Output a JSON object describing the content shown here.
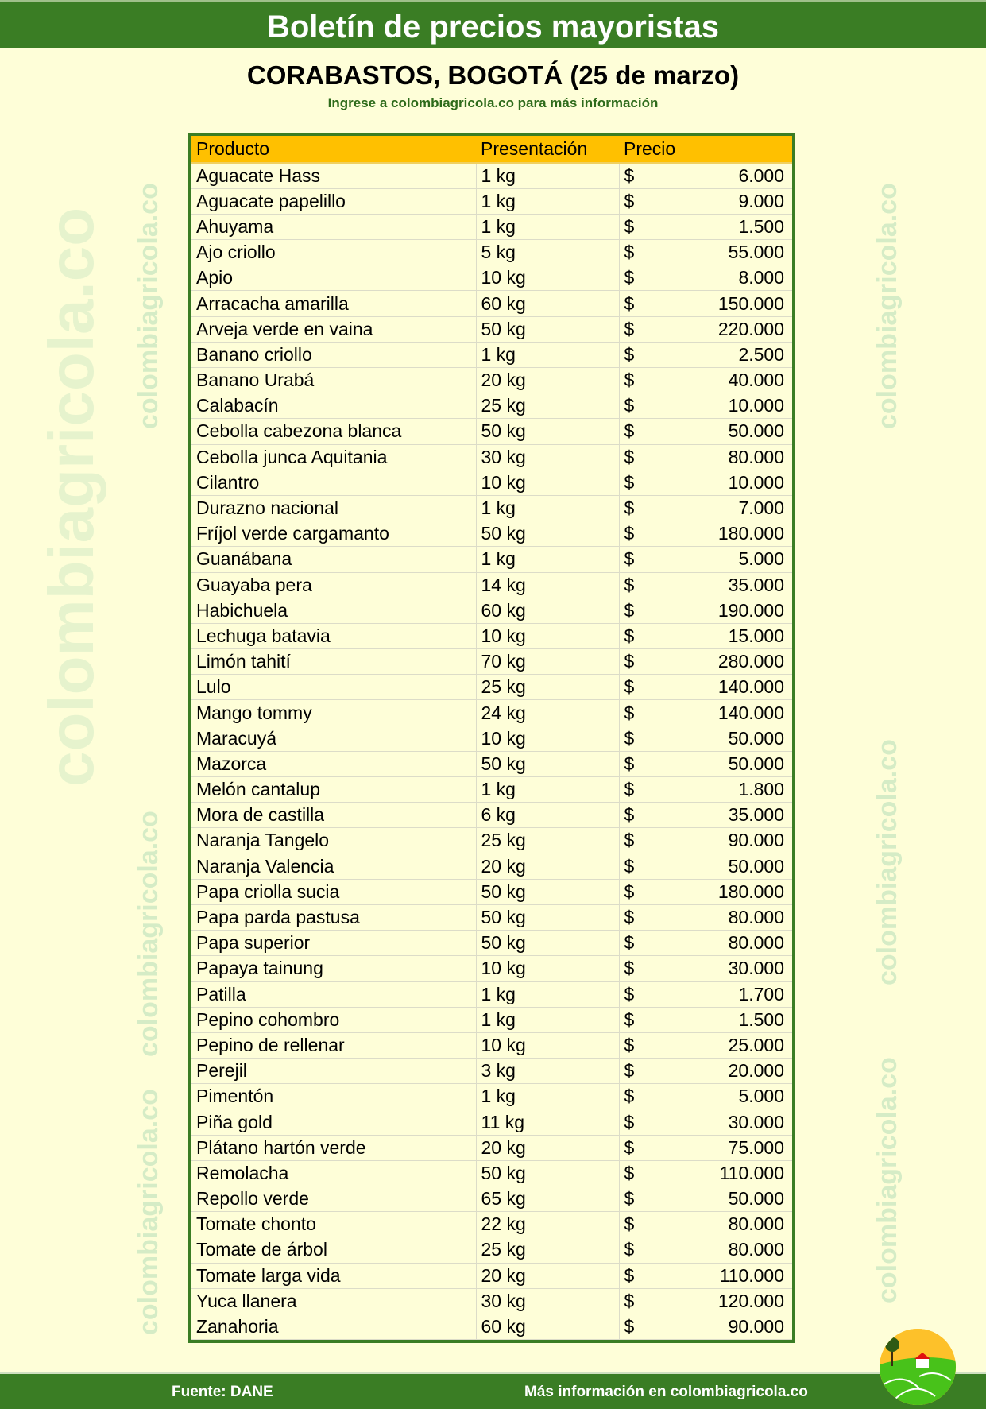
{
  "header": {
    "title": "Boletín de precios mayoristas",
    "subtitle": "CORABASTOS, BOGOTÁ (25 de marzo)",
    "info": "Ingrese a colombiagricola.co para más información"
  },
  "watermark": "colombiagricola.co",
  "table": {
    "columns": [
      "Producto",
      "Presentación",
      "Precio"
    ],
    "currency": "$",
    "rows": [
      [
        "Aguacate Hass",
        "1 kg",
        "6.000"
      ],
      [
        "Aguacate papelillo",
        "1 kg",
        "9.000"
      ],
      [
        "Ahuyama",
        "1 kg",
        "1.500"
      ],
      [
        "Ajo criollo",
        "5 kg",
        "55.000"
      ],
      [
        "Apio",
        "10 kg",
        "8.000"
      ],
      [
        "Arracacha amarilla",
        "60 kg",
        "150.000"
      ],
      [
        "Arveja verde en vaina",
        "50 kg",
        "220.000"
      ],
      [
        "Banano criollo",
        "1 kg",
        "2.500"
      ],
      [
        "Banano Urabá",
        "20 kg",
        "40.000"
      ],
      [
        "Calabacín",
        "25 kg",
        "10.000"
      ],
      [
        "Cebolla cabezona blanca",
        "50 kg",
        "50.000"
      ],
      [
        "Cebolla junca Aquitania",
        "30 kg",
        "80.000"
      ],
      [
        "Cilantro",
        "10 kg",
        "10.000"
      ],
      [
        "Durazno nacional",
        "1 kg",
        "7.000"
      ],
      [
        "Fríjol verde cargamanto",
        "50 kg",
        "180.000"
      ],
      [
        "Guanábana",
        "1 kg",
        "5.000"
      ],
      [
        "Guayaba pera",
        "14 kg",
        "35.000"
      ],
      [
        "Habichuela",
        "60 kg",
        "190.000"
      ],
      [
        "Lechuga batavia",
        "10 kg",
        "15.000"
      ],
      [
        "Limón tahití",
        "70 kg",
        "280.000"
      ],
      [
        "Lulo",
        "25 kg",
        "140.000"
      ],
      [
        "Mango tommy",
        "24 kg",
        "140.000"
      ],
      [
        "Maracuyá",
        "10 kg",
        "50.000"
      ],
      [
        "Mazorca",
        "50 kg",
        "50.000"
      ],
      [
        "Melón cantalup",
        "1 kg",
        "1.800"
      ],
      [
        "Mora de castilla",
        "6 kg",
        "35.000"
      ],
      [
        "Naranja Tangelo",
        "25 kg",
        "90.000"
      ],
      [
        "Naranja Valencia",
        "20 kg",
        "50.000"
      ],
      [
        "Papa criolla sucia",
        "50 kg",
        "180.000"
      ],
      [
        "Papa parda pastusa",
        "50 kg",
        "80.000"
      ],
      [
        "Papa superior",
        "50 kg",
        "80.000"
      ],
      [
        "Papaya tainung",
        "10 kg",
        "30.000"
      ],
      [
        "Patilla",
        "1 kg",
        "1.700"
      ],
      [
        "Pepino cohombro",
        "1 kg",
        "1.500"
      ],
      [
        "Pepino de rellenar",
        "10 kg",
        "25.000"
      ],
      [
        "Perejil",
        "3 kg",
        "20.000"
      ],
      [
        "Pimentón",
        "1 kg",
        "5.000"
      ],
      [
        "Piña gold",
        "11 kg",
        "30.000"
      ],
      [
        "Plátano hartón verde",
        "20 kg",
        "75.000"
      ],
      [
        "Remolacha",
        "50 kg",
        "110.000"
      ],
      [
        "Repollo verde",
        "65 kg",
        "50.000"
      ],
      [
        "Tomate chonto",
        "22 kg",
        "80.000"
      ],
      [
        "Tomate de árbol",
        "25 kg",
        "80.000"
      ],
      [
        "Tomate larga vida",
        "20 kg",
        "110.000"
      ],
      [
        "Yuca llanera",
        "30 kg",
        "120.000"
      ],
      [
        "Zanahoria",
        "60 kg",
        "90.000"
      ]
    ]
  },
  "footer": {
    "source": "Fuente: DANE",
    "more": "Más información en colombiagricola.co"
  },
  "colors": {
    "green": "#3a7d24",
    "header_row": "#ffc000",
    "background": "#fefed8"
  }
}
